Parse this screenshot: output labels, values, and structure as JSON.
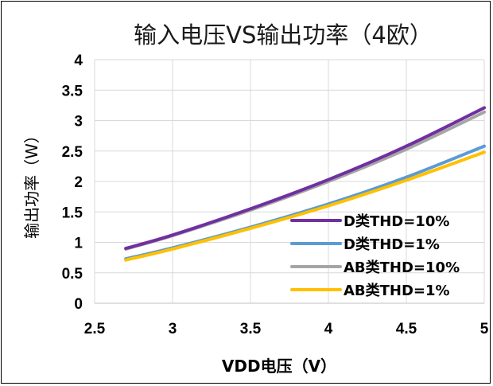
{
  "chart_data": {
    "type": "line",
    "title": "输入电压VS输出功率（4欧）",
    "xlabel": "VDD电压（V）",
    "ylabel": "输出功率（W）",
    "xlim": [
      2.5,
      5
    ],
    "ylim": [
      0,
      4
    ],
    "x_ticks": [
      "2.5",
      "3",
      "3.5",
      "4",
      "4.5",
      "5"
    ],
    "y_ticks": [
      "0",
      "0.5",
      "1",
      "1.5",
      "2",
      "2.5",
      "3",
      "3.5",
      "4"
    ],
    "grid": "vertical and horizontal",
    "legend_position": "bottom-right",
    "x": [
      2.7,
      3.0,
      3.5,
      4.0,
      4.5,
      5.0
    ],
    "series": [
      {
        "name": "D类THD=10%",
        "color": "#7030a0",
        "values": [
          0.9,
          1.12,
          1.55,
          2.03,
          2.58,
          3.21
        ]
      },
      {
        "name": "D类THD=1%",
        "color": "#5b9bd5",
        "values": [
          0.73,
          0.91,
          1.25,
          1.63,
          2.07,
          2.58
        ]
      },
      {
        "name": "AB类THD=10%",
        "color": "#a5a5a5",
        "values": [
          0.89,
          1.11,
          1.53,
          2.0,
          2.53,
          3.14
        ]
      },
      {
        "name": "AB类THD=1%",
        "color": "#ffc000",
        "values": [
          0.71,
          0.89,
          1.23,
          1.6,
          2.02,
          2.48
        ]
      }
    ]
  }
}
